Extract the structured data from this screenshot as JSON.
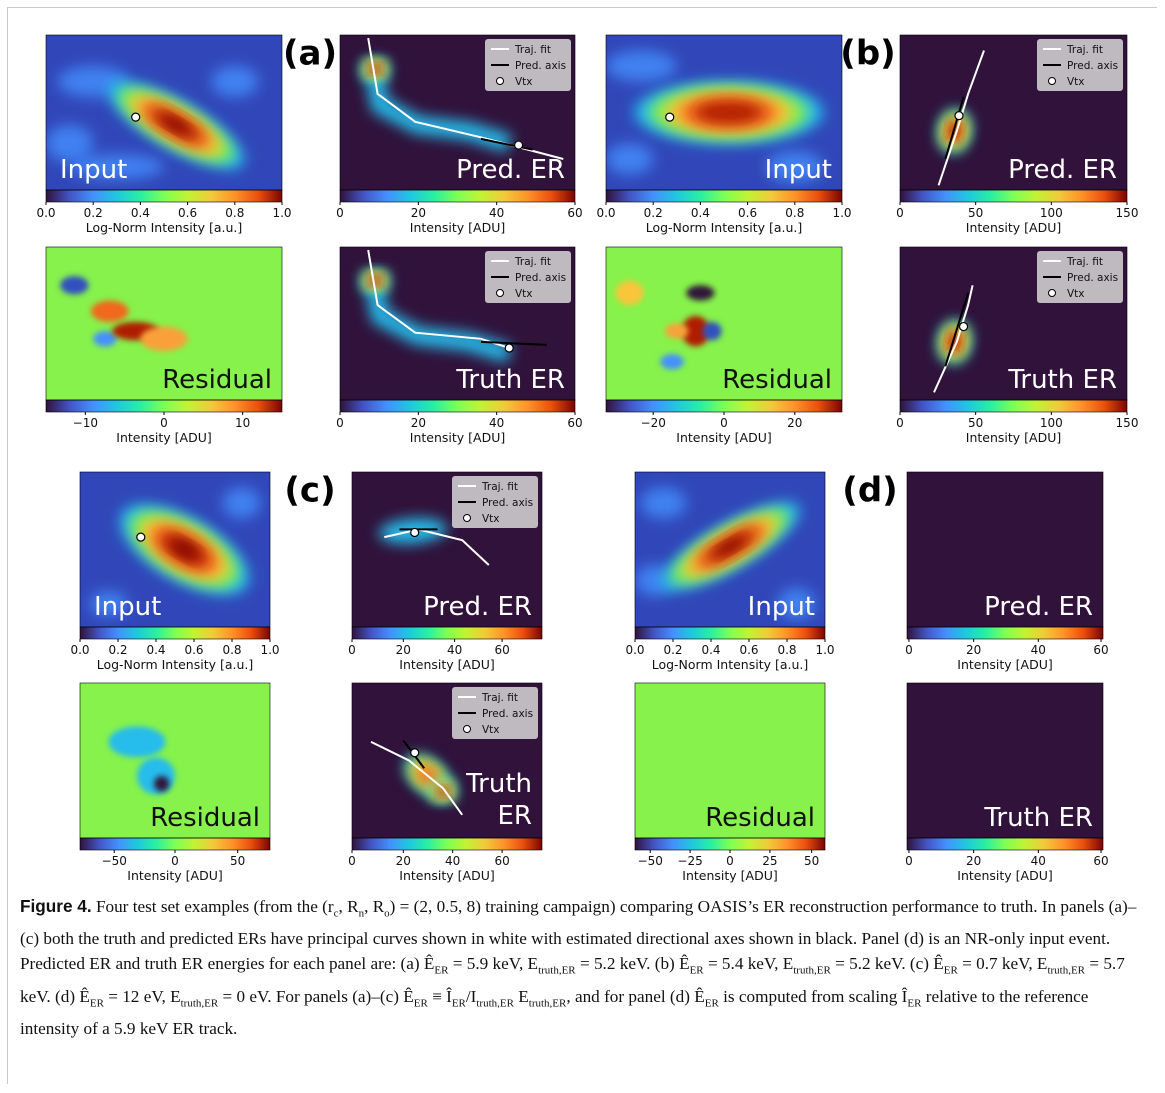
{
  "figure": {
    "group_labels": [
      "(a)",
      "(b)",
      "(c)",
      "(d)"
    ],
    "legend": [
      "Traj. fit",
      "Pred. axis",
      "Vtx"
    ],
    "panels": [
      {
        "label": "Input",
        "colorbar_label": "Log-Norm Intensity [a.u.]",
        "ticks": [
          "0.0",
          "0.2",
          "0.4",
          "0.6",
          "0.8",
          "1.0"
        ]
      },
      {
        "label": "Pred. ER",
        "colorbar_label": "Intensity [ADU]",
        "ticks": [
          "0",
          "20",
          "40",
          "60"
        ],
        "legend": true
      },
      {
        "label": "Residual",
        "colorbar_label": "Intensity [ADU]",
        "ticks": [
          "−10",
          "0",
          "10"
        ]
      },
      {
        "label": "Truth ER",
        "colorbar_label": "Intensity [ADU]",
        "ticks": [
          "0",
          "20",
          "40",
          "60"
        ],
        "legend": true
      },
      {
        "label": "Input",
        "colorbar_label": "Log-Norm Intensity [a.u.]",
        "ticks": [
          "0.0",
          "0.2",
          "0.4",
          "0.6",
          "0.8",
          "1.0"
        ]
      },
      {
        "label": "Pred. ER",
        "colorbar_label": "Intensity [ADU]",
        "ticks": [
          "0",
          "50",
          "100",
          "150"
        ],
        "legend": true
      },
      {
        "label": "Residual",
        "colorbar_label": "Intensity [ADU]",
        "ticks": [
          "−20",
          "0",
          "20"
        ]
      },
      {
        "label": "Truth ER",
        "colorbar_label": "Intensity [ADU]",
        "ticks": [
          "0",
          "50",
          "100",
          "150"
        ],
        "legend": true
      },
      {
        "label": "Input",
        "colorbar_label": "Log-Norm Intensity [a.u.]",
        "ticks": [
          "0.0",
          "0.2",
          "0.4",
          "0.6",
          "0.8",
          "1.0"
        ]
      },
      {
        "label": "Pred. ER",
        "colorbar_label": "Intensity [ADU]",
        "ticks": [
          "0",
          "20",
          "40",
          "60"
        ],
        "legend": true
      },
      {
        "label": "Residual",
        "colorbar_label": "Intensity [ADU]",
        "ticks": [
          "−50",
          "0",
          "50"
        ]
      },
      {
        "label_lines": [
          "Truth",
          "ER"
        ],
        "colorbar_label": "Intensity [ADU]",
        "ticks": [
          "0",
          "20",
          "40",
          "60"
        ],
        "legend": true
      },
      {
        "label": "Input",
        "colorbar_label": "Log-Norm Intensity [a.u.]",
        "ticks": [
          "0.0",
          "0.2",
          "0.4",
          "0.6",
          "0.8",
          "1.0"
        ]
      },
      {
        "label": "Pred. ER",
        "colorbar_label": "Intensity [ADU]",
        "ticks": [
          "0",
          "20",
          "40",
          "60"
        ]
      },
      {
        "label": "Residual",
        "colorbar_label": "Intensity [ADU]",
        "ticks": [
          "−50",
          "−25",
          "0",
          "25",
          "50"
        ]
      },
      {
        "label": "Truth ER",
        "colorbar_label": "Intensity [ADU]",
        "ticks": [
          "0",
          "20",
          "40",
          "60"
        ]
      }
    ],
    "caption": {
      "label": "Figure 4.",
      "runs": [
        " Four test set examples (from the (r",
        {
          "sub": "c"
        },
        ", R",
        {
          "sub": "n"
        },
        ", R",
        {
          "sub": "o"
        },
        ") = (2, 0.5, 8) training campaign) comparing OASIS’s ER reconstruction performance to truth. In panels (a)–(c) both the truth and predicted ERs have principal curves shown in white with estimated directional axes shown in black. Panel (d) is an NR-only input event. Predicted ER and truth ER energies for each panel are: (a) Ê",
        {
          "sub": "ER"
        },
        " = 5.9 keV, E",
        {
          "sub": "truth,ER"
        },
        " = 5.2 keV. (b) Ê",
        {
          "sub": "ER"
        },
        " = 5.4 keV, E",
        {
          "sub": "truth,ER"
        },
        " = 5.2 keV. (c) Ê",
        {
          "sub": "ER"
        },
        " = 0.7 keV, E",
        {
          "sub": "truth,ER"
        },
        " = 5.7 keV. (d) Ê",
        {
          "sub": "ER"
        },
        " = 12 eV, E",
        {
          "sub": "truth,ER"
        },
        " = 0 eV. For panels (a)–(c) Ê",
        {
          "sub": "ER"
        },
        " ≡ Î",
        {
          "sub": "ER"
        },
        "/I",
        {
          "sub": "truth,ER"
        },
        " E",
        {
          "sub": "truth,ER"
        },
        ", and for panel (d) Ê",
        {
          "sub": "ER"
        },
        " is computed from scaling Î",
        {
          "sub": "ER"
        },
        " relative to the reference intensity of a 5.9 keV ER track."
      ]
    }
  }
}
